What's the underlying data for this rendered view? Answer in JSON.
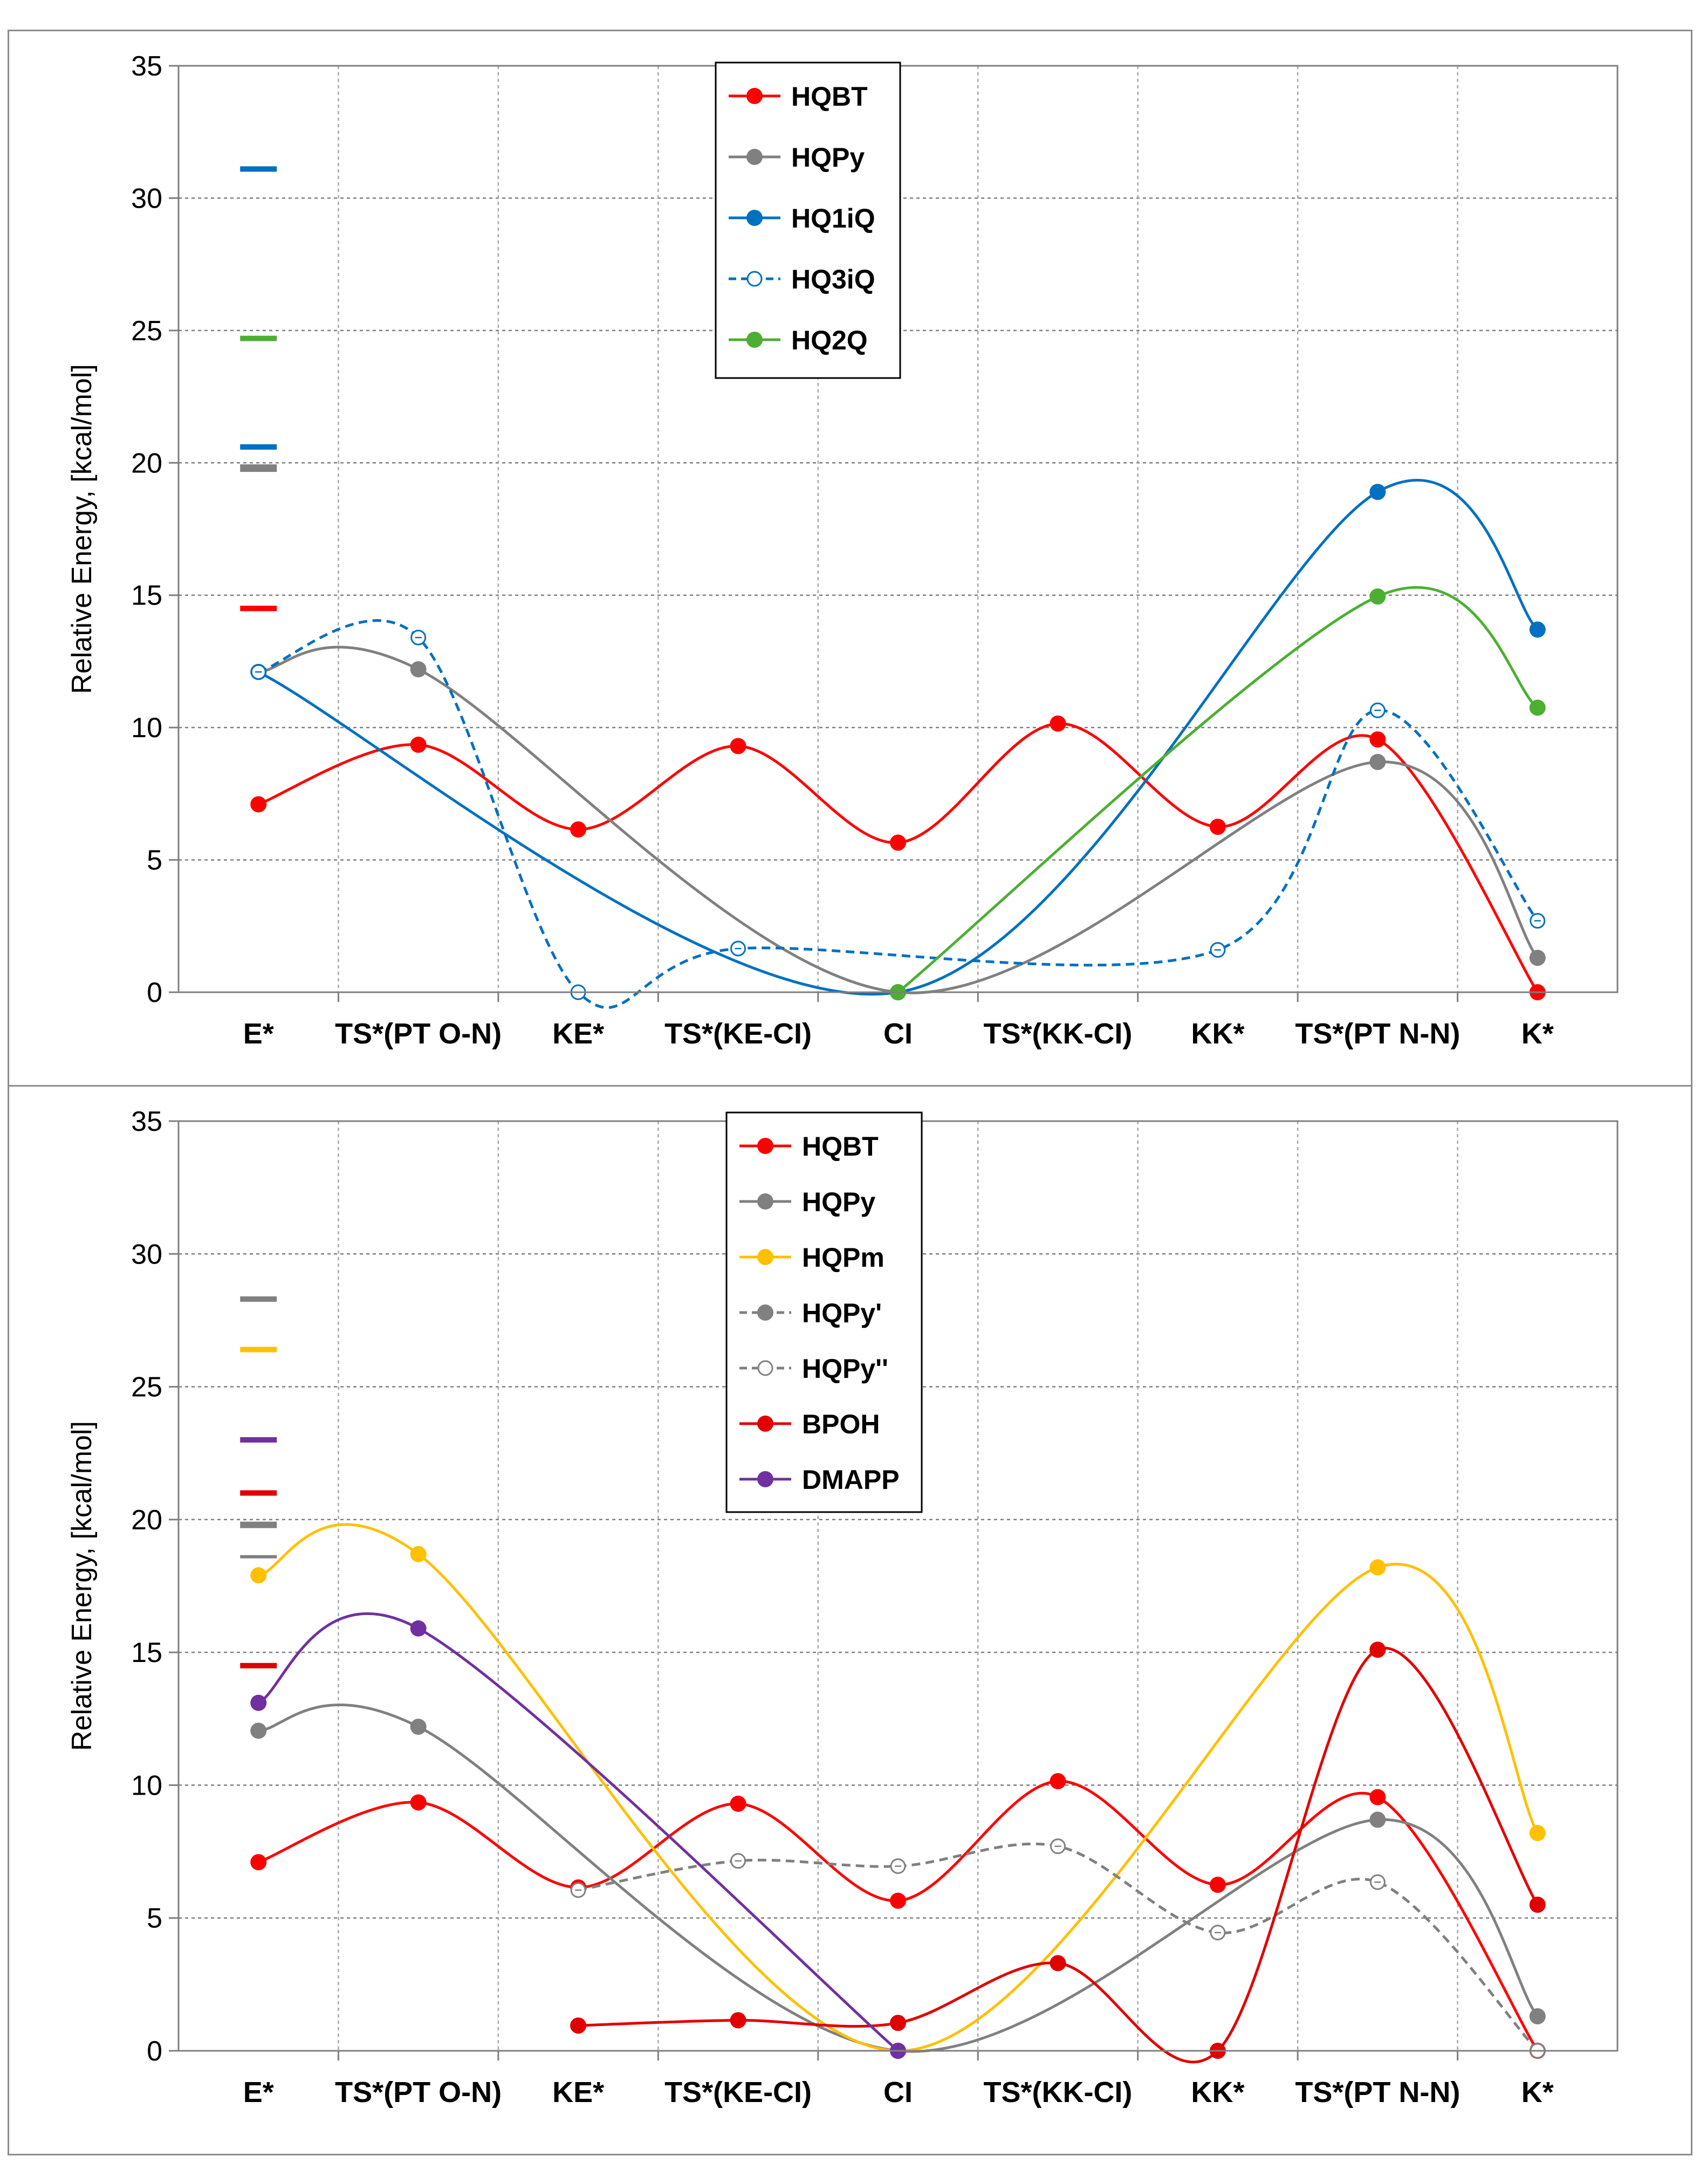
{
  "colors": {
    "red": "#ff0000",
    "gray": "#808080",
    "blue": "#0070c0",
    "green": "#4caf32",
    "yellow": "#ffc000",
    "darkred": "#e00000",
    "purple": "#7030a0"
  },
  "chart_data": [
    {
      "type": "line",
      "ylabel": "Relative Energy, [kcal/mol]",
      "ylim": [
        0,
        35
      ],
      "yticks": [
        "0",
        "5",
        "10",
        "15",
        "20",
        "25",
        "30",
        "35"
      ],
      "grid": true,
      "legend_position": "top-center",
      "categories": [
        "E*",
        "TS*(PT O-N)",
        "KE*",
        "TS*(KE-CI)",
        "CI",
        "TS*(KK-CI)",
        "KK*",
        "TS*(PT N-N)",
        "K*"
      ],
      "series": [
        {
          "name": "HQBT",
          "color": "#ff0000",
          "dashed": false,
          "hollow": false,
          "points": [
            [
              0,
              7.1
            ],
            [
              1,
              9.35
            ],
            [
              2,
              6.15
            ],
            [
              3,
              9.3
            ],
            [
              4,
              5.65
            ],
            [
              5,
              10.15
            ],
            [
              6,
              6.25
            ],
            [
              7,
              9.55
            ],
            [
              8,
              0.0
            ]
          ]
        },
        {
          "name": "HQPy",
          "color": "#808080",
          "dashed": false,
          "hollow": false,
          "points": [
            [
              0,
              12.1
            ],
            [
              1,
              12.2
            ],
            [
              4,
              0.0
            ],
            [
              7,
              8.7
            ],
            [
              8,
              1.3
            ]
          ]
        },
        {
          "name": "HQ1iQ",
          "color": "#0070c0",
          "dashed": false,
          "hollow": false,
          "points": [
            [
              0,
              12.1
            ],
            [
              4,
              0.0
            ],
            [
              7,
              18.9
            ],
            [
              8,
              13.7
            ]
          ]
        },
        {
          "name": "HQ3iQ",
          "color": "#0070c0",
          "dashed": true,
          "hollow": true,
          "points": [
            [
              0,
              12.1
            ],
            [
              1,
              13.4
            ],
            [
              2,
              0.0
            ],
            [
              3,
              1.65
            ],
            [
              6,
              1.6
            ],
            [
              7,
              10.65
            ],
            [
              8,
              2.7
            ]
          ]
        },
        {
          "name": "HQ2Q",
          "color": "#4caf32",
          "dashed": false,
          "hollow": false,
          "points": [
            [
              4,
              0.0
            ],
            [
              7,
              14.95
            ],
            [
              8,
              10.75
            ]
          ]
        }
      ],
      "e0_markers": [
        {
          "value": 31.1,
          "color": "#0070c0",
          "thickness": 10
        },
        {
          "value": 24.7,
          "color": "#4caf32",
          "thickness": 10
        },
        {
          "value": 20.6,
          "color": "#0070c0",
          "thickness": 10
        },
        {
          "value": 19.8,
          "color": "#808080",
          "thickness": 14
        },
        {
          "value": 14.5,
          "color": "#ff0000",
          "thickness": 10
        }
      ]
    },
    {
      "type": "line",
      "ylabel": "Relative Energy, [kcal/mol]",
      "ylim": [
        0,
        35
      ],
      "yticks": [
        "0",
        "5",
        "10",
        "15",
        "20",
        "25",
        "30",
        "35"
      ],
      "grid": true,
      "legend_position": "top-center",
      "categories": [
        "E*",
        "TS*(PT O-N)",
        "KE*",
        "TS*(KE-CI)",
        "CI",
        "TS*(KK-CI)",
        "KK*",
        "TS*(PT N-N)",
        "K*"
      ],
      "series": [
        {
          "name": "HQBT",
          "color": "#ff0000",
          "dashed": false,
          "hollow": false,
          "points": [
            [
              0,
              7.1
            ],
            [
              1,
              9.35
            ],
            [
              2,
              6.15
            ],
            [
              3,
              9.3
            ],
            [
              4,
              5.65
            ],
            [
              5,
              10.15
            ],
            [
              6,
              6.25
            ],
            [
              7,
              9.55
            ],
            [
              8,
              0.0
            ]
          ]
        },
        {
          "name": "HQPy",
          "color": "#808080",
          "dashed": false,
          "hollow": false,
          "points": [
            [
              0,
              12.05
            ],
            [
              1,
              12.2
            ],
            [
              4,
              0.0
            ],
            [
              7,
              8.7
            ],
            [
              8,
              1.3
            ]
          ]
        },
        {
          "name": "HQPm",
          "color": "#ffc000",
          "dashed": false,
          "hollow": false,
          "points": [
            [
              0,
              17.9
            ],
            [
              1,
              18.7
            ],
            [
              4,
              0.0
            ],
            [
              7,
              18.2
            ],
            [
              8,
              8.2
            ]
          ]
        },
        {
          "name": "HQPy'",
          "color": "#808080",
          "dashed": true,
          "hollow": false,
          "points": []
        },
        {
          "name": "HQPy''",
          "color": "#808080",
          "dashed": true,
          "hollow": true,
          "points": [
            [
              2,
              6.05
            ],
            [
              3,
              7.15
            ],
            [
              4,
              6.95
            ],
            [
              5,
              7.7
            ],
            [
              6,
              4.45
            ],
            [
              7,
              6.35
            ],
            [
              8,
              0.0
            ]
          ]
        },
        {
          "name": "BPOH",
          "color": "#e00000",
          "dashed": false,
          "hollow": false,
          "points": [
            [
              2,
              0.95
            ],
            [
              3,
              1.15
            ],
            [
              4,
              1.05
            ],
            [
              5,
              3.3
            ],
            [
              6,
              0.0
            ],
            [
              7,
              15.1
            ],
            [
              8,
              5.5
            ]
          ]
        },
        {
          "name": "DMAPP",
          "color": "#7030a0",
          "dashed": false,
          "hollow": false,
          "points": [
            [
              0,
              13.1
            ],
            [
              1,
              15.9
            ],
            [
              4,
              0.0
            ]
          ]
        }
      ],
      "e0_markers": [
        {
          "value": 28.3,
          "color": "#808080",
          "thickness": 10
        },
        {
          "value": 26.4,
          "color": "#ffc000",
          "thickness": 10
        },
        {
          "value": 23.0,
          "color": "#7030a0",
          "thickness": 10
        },
        {
          "value": 21.0,
          "color": "#e00000",
          "thickness": 10
        },
        {
          "value": 19.8,
          "color": "#808080",
          "thickness": 12
        },
        {
          "value": 18.6,
          "color": "#808080",
          "thickness": 6
        },
        {
          "value": 14.5,
          "color": "#e00000",
          "thickness": 10
        }
      ]
    }
  ]
}
